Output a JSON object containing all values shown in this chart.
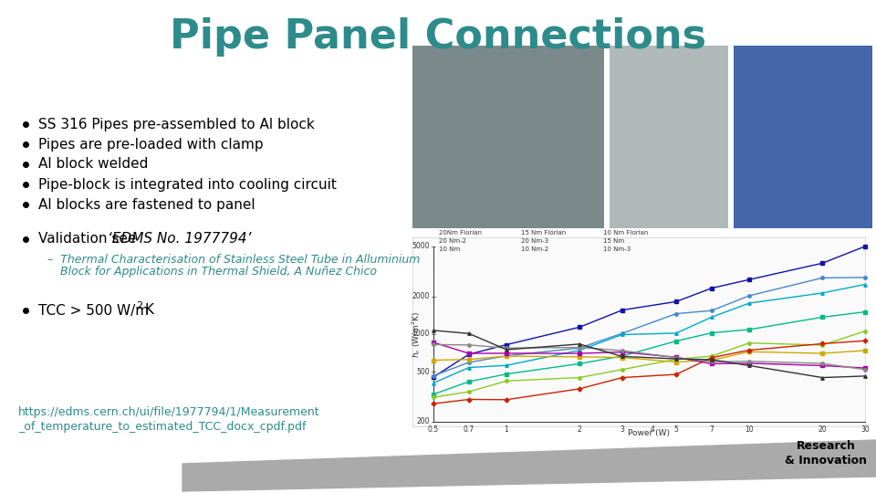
{
  "title": "Pipe Panel Connections",
  "title_color": "#2E8B8B",
  "title_fontsize": 32,
  "background_color": "#FFFFFF",
  "bullet_points": [
    "SS 316 Pipes pre-assembled to Al block",
    "Pipes are pre-loaded with clamp",
    "Al block welded",
    "Pipe-block is integrated into cooling circuit",
    "Al blocks are fastened to panel"
  ],
  "bullet_color": "#000000",
  "bullet_fontsize": 11,
  "link_color": "#2E8B8B",
  "link_line1": "https://edms.cern.ch/ui/file/1977794/1/Measurement",
  "link_line2": "_of_temperature_to_estimated_TCC_docx_cpdf.pdf",
  "ri_text1": "Research",
  "ri_text2": "& Innovation",
  "ri_color": "#000000",
  "graph_line_colors": [
    "#1111AA",
    "#4488CC",
    "#00AACC",
    "#00BB88",
    "#88CC22",
    "#CCAA00",
    "#CC2200",
    "#AA00AA",
    "#888888",
    "#333333"
  ],
  "img1_color": "#7A8A8A",
  "img2_color": "#B0B8B8",
  "img3_color": "#4466AA"
}
